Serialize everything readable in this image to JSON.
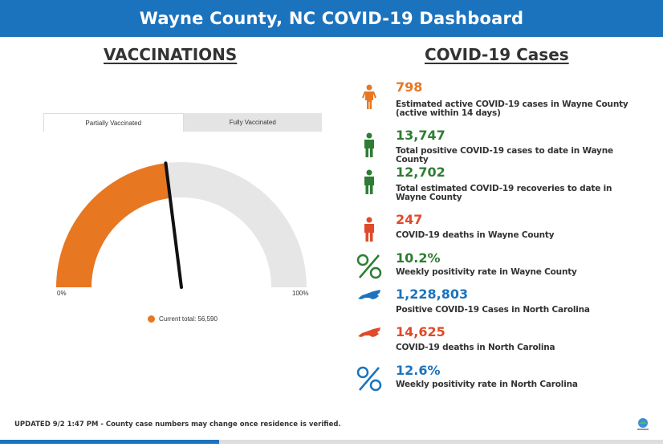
{
  "header": {
    "title": "Wayne County, NC COVID-19 Dashboard"
  },
  "vaccinations": {
    "title": "VACCINATIONS",
    "tabs": [
      {
        "label": "Partially Vaccinated",
        "active": true
      },
      {
        "label": "Fully Vaccinated",
        "active": false
      }
    ],
    "gauge": {
      "fraction": 0.46,
      "min_label": "0%",
      "max_label": "100%"
    },
    "legend": "Current total: 56,590",
    "colors": {
      "fill": "#e87722",
      "track": "#e6e6e6",
      "needle": "#111111"
    }
  },
  "cases": {
    "title": "COVID-19 Cases",
    "stats": [
      {
        "value": "798",
        "label": "Estimated active COVID-19 cases in Wayne County (active within 14 days)",
        "color": "#e87722",
        "icon": "person-icon"
      },
      {
        "value": "13,747",
        "label": "Total positive COVID-19 cases to date in Wayne County",
        "color": "#2e7d32",
        "icon": "person-icon"
      },
      {
        "value": "12,702",
        "label": "Total estimated COVID-19 recoveries to date in Wayne County",
        "color": "#2e7d32",
        "icon": "person-icon"
      },
      {
        "value": "247",
        "label": "COVID-19 deaths in Wayne County",
        "color": "#e04a2a",
        "icon": "person-icon"
      },
      {
        "value": "10.2%",
        "label": "Weekly positivity rate in Wayne County",
        "color": "#2e7d32",
        "icon": "percent-icon"
      },
      {
        "value": "1,228,803",
        "label": "Positive COVID-19 Cases in North Carolina",
        "color": "#1c73bd",
        "icon": "north-carolina-map-icon"
      },
      {
        "value": "14,625",
        "label": "COVID-19 deaths in North Carolina",
        "color": "#e04a2a",
        "icon": "north-carolina-map-icon"
      },
      {
        "value": "12.6%",
        "label": "Weekly positivity rate in North Carolina",
        "color": "#1c73bd",
        "icon": "percent-icon"
      }
    ]
  },
  "footer": {
    "text": "UPDATED 9/2 1:47 PM - County case numbers may change once residence is verified."
  },
  "page_progress": 0.33
}
